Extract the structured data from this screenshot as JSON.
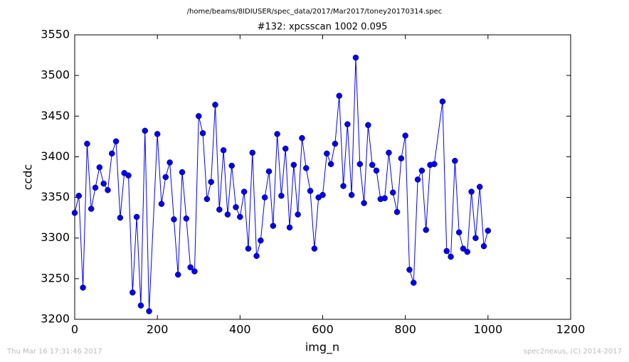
{
  "chart_data": {
    "type": "line",
    "suptitle": "/home/beams/8IDIUSER/spec_data/2017/Mar2017/toney20170314.spec",
    "title": "#132: xpcsscan 1002 0.095",
    "xlabel": "img_n",
    "ylabel": "ccdc",
    "footer_left": "Thu Mar 16 17:31:46 2017",
    "footer_right": "spec2nexus, (C) 2014-2017",
    "xlim": [
      0,
      1200
    ],
    "ylim": [
      3200,
      3550
    ],
    "xticks": [
      0,
      200,
      400,
      600,
      800,
      1000,
      1200
    ],
    "yticks": [
      3200,
      3250,
      3300,
      3350,
      3400,
      3450,
      3500,
      3550
    ],
    "series": [
      {
        "color": "#0000ff",
        "x": [
          0,
          10,
          20,
          30,
          40,
          50,
          60,
          70,
          80,
          90,
          100,
          110,
          120,
          130,
          140,
          150,
          160,
          170,
          180,
          200,
          210,
          220,
          230,
          240,
          250,
          260,
          270,
          280,
          290,
          300,
          310,
          320,
          330,
          340,
          350,
          360,
          370,
          380,
          390,
          400,
          410,
          420,
          430,
          440,
          450,
          460,
          470,
          480,
          490,
          500,
          510,
          520,
          530,
          540,
          550,
          560,
          570,
          580,
          590,
          600,
          610,
          620,
          630,
          640,
          650,
          660,
          670,
          680,
          690,
          700,
          710,
          720,
          730,
          740,
          750,
          760,
          770,
          780,
          790,
          800,
          810,
          820,
          830,
          840,
          850,
          860,
          870,
          890,
          900,
          910,
          920,
          930,
          940,
          950,
          960,
          970,
          980,
          990,
          1000
        ],
        "values": [
          3331,
          3352,
          3239,
          3416,
          3336,
          3362,
          3387,
          3367,
          3359,
          3404,
          3419,
          3325,
          3380,
          3377,
          3233,
          3326,
          3217,
          3432,
          3210,
          3428,
          3342,
          3375,
          3393,
          3323,
          3255,
          3381,
          3324,
          3264,
          3259,
          3450,
          3429,
          3348,
          3369,
          3464,
          3335,
          3408,
          3329,
          3389,
          3338,
          3326,
          3357,
          3287,
          3405,
          3278,
          3297,
          3350,
          3382,
          3315,
          3428,
          3352,
          3410,
          3313,
          3390,
          3329,
          3423,
          3386,
          3358,
          3287,
          3350,
          3353,
          3404,
          3391,
          3416,
          3475,
          3364,
          3440,
          3353,
          3522,
          3391,
          3343,
          3439,
          3390,
          3383,
          3348,
          3349,
          3405,
          3356,
          3332,
          3398,
          3426,
          3261,
          3245,
          3372,
          3383,
          3310,
          3390,
          3391,
          3468,
          3284,
          3277,
          3395,
          3307,
          3287,
          3283,
          3357,
          3300,
          3363,
          3290,
          3309
        ]
      }
    ]
  }
}
